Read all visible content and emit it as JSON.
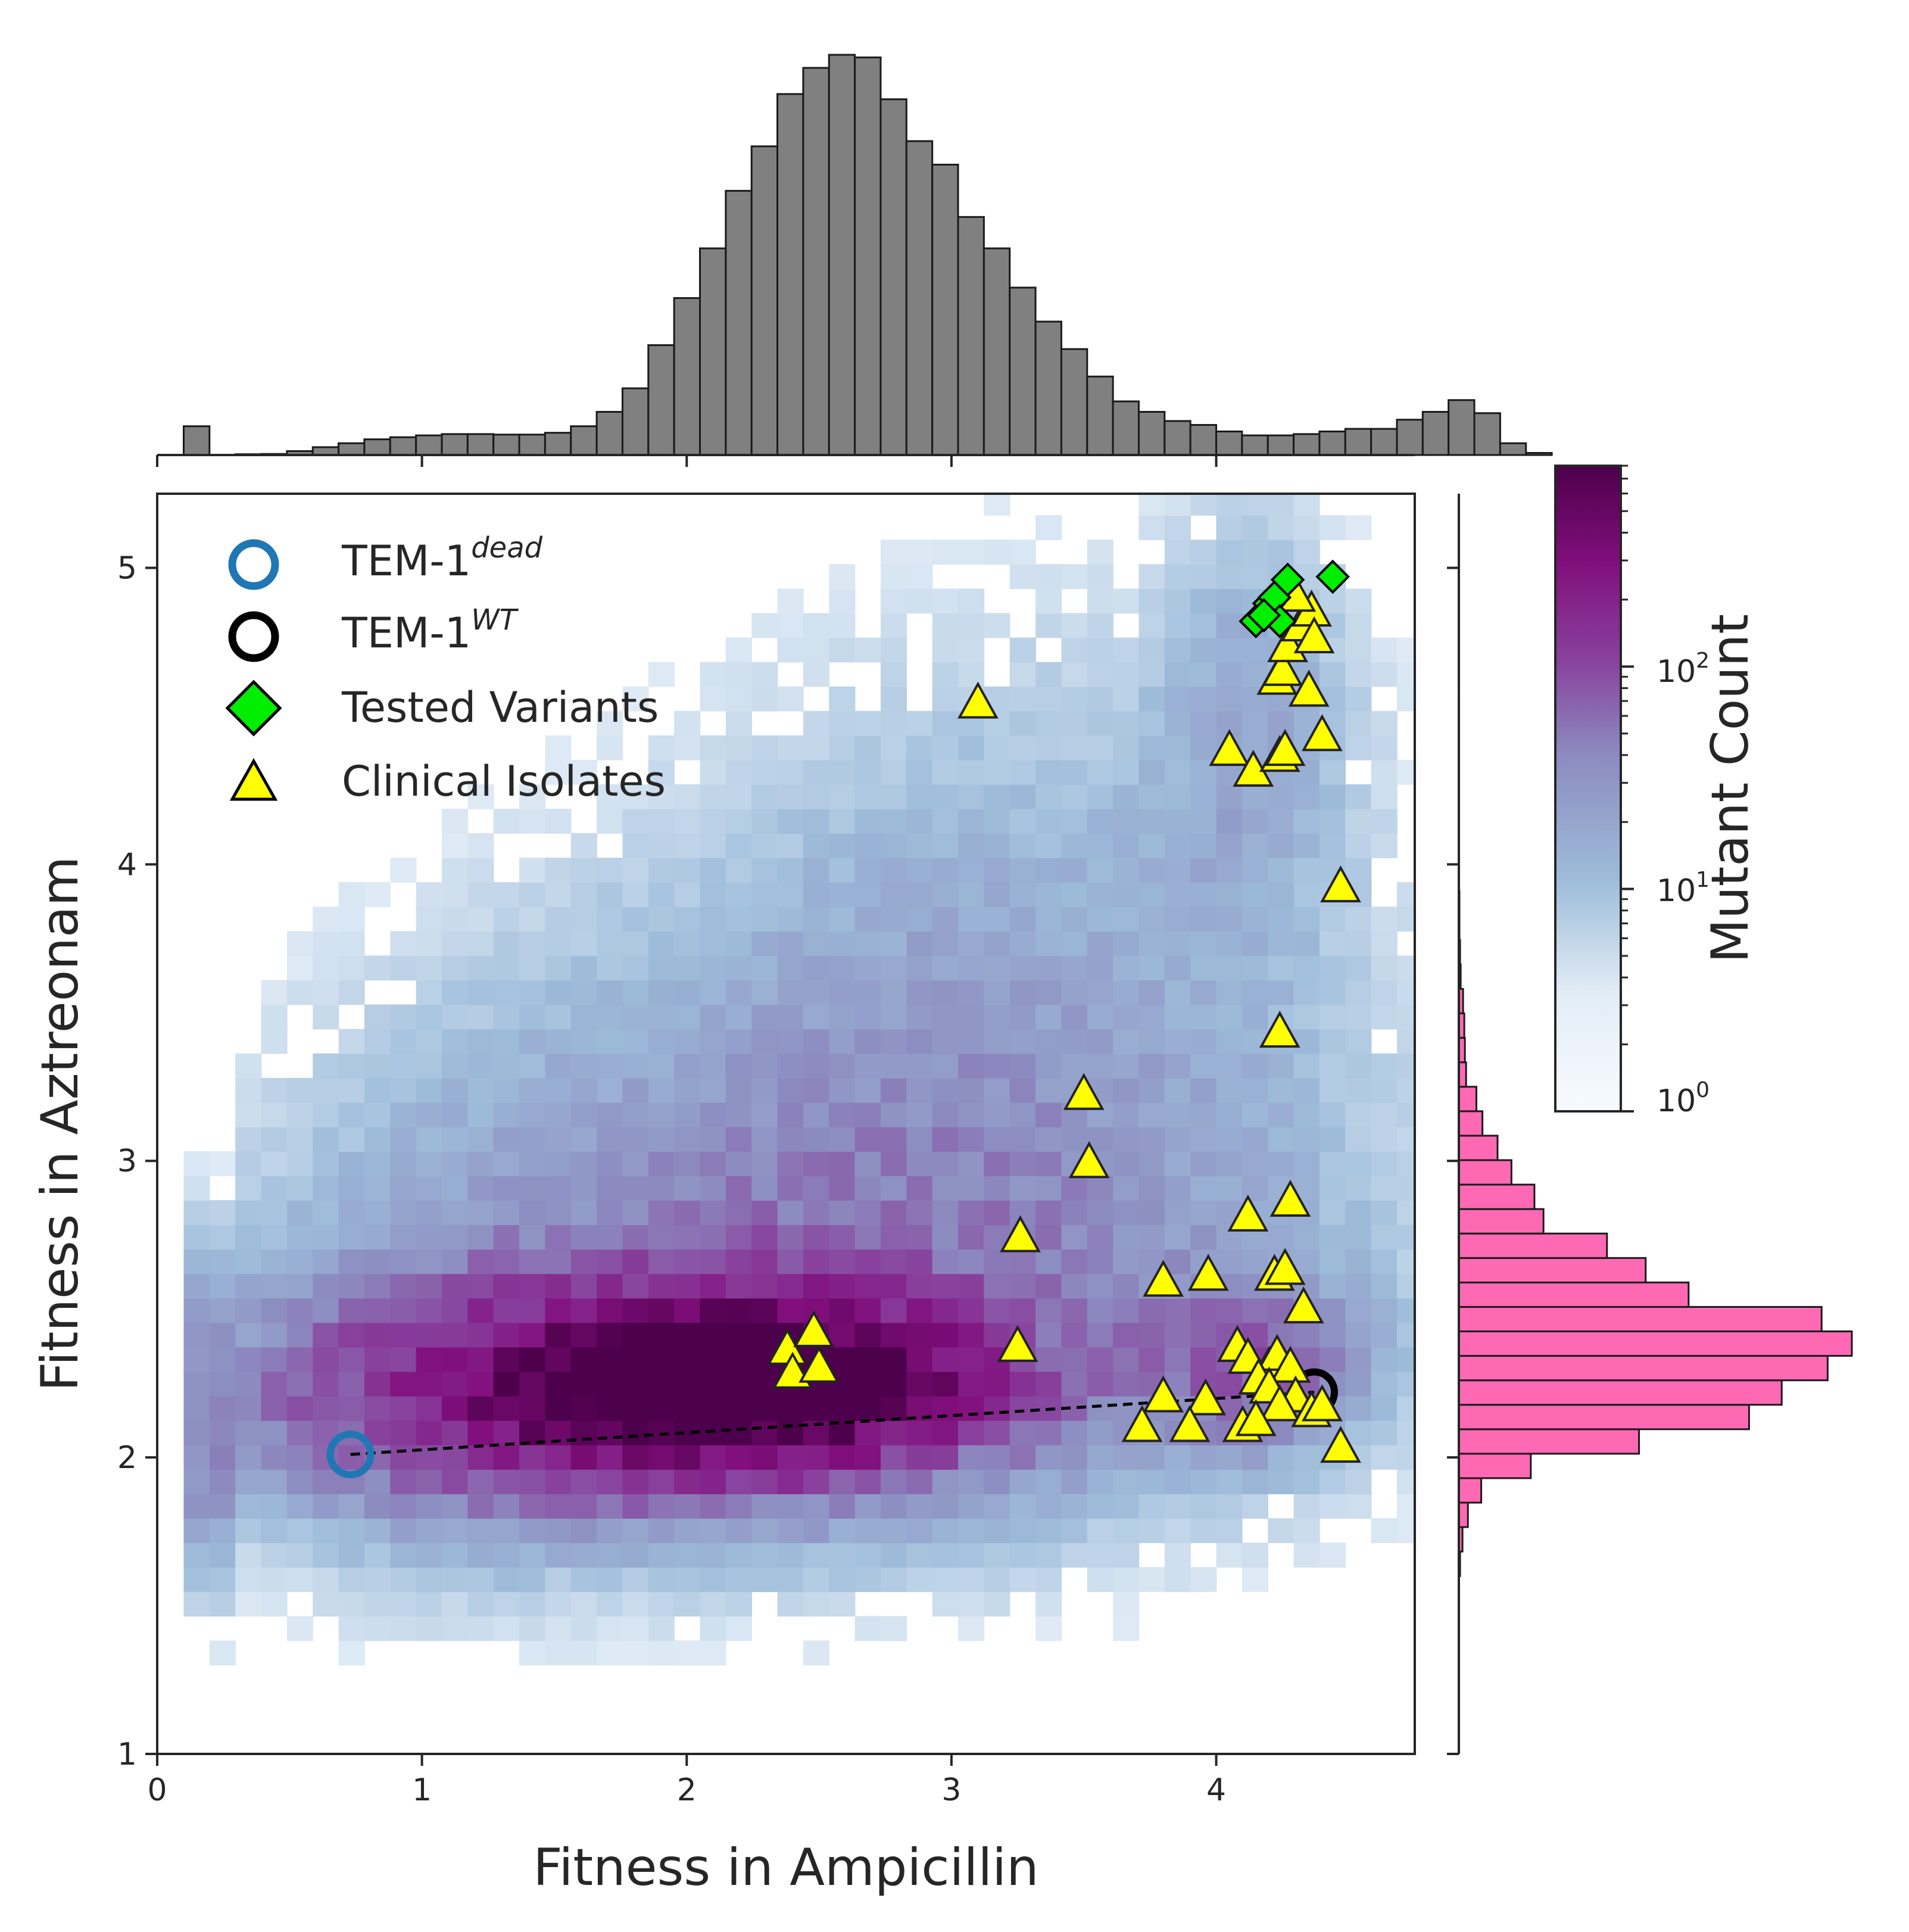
{
  "chart_data": [
    {
      "type": "heatmap",
      "panel": "joint",
      "xlabel": "Fitness in Ampicillin",
      "ylabel": "Fitness in Aztreonam",
      "xlim": [
        0,
        4.75
      ],
      "ylim": [
        1,
        5.25
      ],
      "xticks": [
        0,
        1,
        2,
        3,
        4
      ],
      "yticks": [
        1,
        2,
        3,
        4,
        5
      ],
      "grid": false,
      "legend_position": "top-left",
      "legend": [
        {
          "label": "TEM-1",
          "sup": "dead",
          "marker": "circle-open",
          "color": "#1f77b4"
        },
        {
          "label": "TEM-1",
          "sup": "WT",
          "marker": "circle-open",
          "color": "#000000"
        },
        {
          "label": "Tested Variants",
          "marker": "diamond",
          "color": "#00ee00"
        },
        {
          "label": "Clinical Isolates",
          "marker": "triangle",
          "color": "#ffff00"
        }
      ],
      "density_description": "2D histogram of mutants, peak near (2.2, 2.25)",
      "points": {
        "tem1_dead": {
          "x": 0.73,
          "y": 2.01
        },
        "tem1_wt": {
          "x": 4.37,
          "y": 2.22
        },
        "tested_variants": [
          {
            "x": 4.15,
            "y": 4.82
          },
          {
            "x": 4.2,
            "y": 4.88
          },
          {
            "x": 4.22,
            "y": 4.9
          },
          {
            "x": 4.27,
            "y": 4.96
          },
          {
            "x": 4.44,
            "y": 4.97
          },
          {
            "x": 4.24,
            "y": 4.82
          },
          {
            "x": 4.18,
            "y": 4.84
          }
        ],
        "clinical_isolates": [
          {
            "x": 3.1,
            "y": 4.54
          },
          {
            "x": 4.05,
            "y": 4.38
          },
          {
            "x": 4.14,
            "y": 4.31
          },
          {
            "x": 4.24,
            "y": 4.36
          },
          {
            "x": 4.26,
            "y": 4.38
          },
          {
            "x": 4.4,
            "y": 4.43
          },
          {
            "x": 4.35,
            "y": 4.58
          },
          {
            "x": 4.23,
            "y": 4.62
          },
          {
            "x": 4.25,
            "y": 4.65
          },
          {
            "x": 4.27,
            "y": 4.73
          },
          {
            "x": 4.32,
            "y": 4.8
          },
          {
            "x": 4.36,
            "y": 4.85
          },
          {
            "x": 4.3,
            "y": 4.9
          },
          {
            "x": 4.37,
            "y": 4.76
          },
          {
            "x": 4.47,
            "y": 3.92
          },
          {
            "x": 4.24,
            "y": 3.43
          },
          {
            "x": 3.5,
            "y": 3.22
          },
          {
            "x": 3.52,
            "y": 2.99
          },
          {
            "x": 4.28,
            "y": 2.86
          },
          {
            "x": 4.12,
            "y": 2.81
          },
          {
            "x": 3.26,
            "y": 2.74
          },
          {
            "x": 3.8,
            "y": 2.59
          },
          {
            "x": 3.97,
            "y": 2.61
          },
          {
            "x": 4.22,
            "y": 2.61
          },
          {
            "x": 4.26,
            "y": 2.63
          },
          {
            "x": 4.33,
            "y": 2.5
          },
          {
            "x": 2.38,
            "y": 2.36
          },
          {
            "x": 2.48,
            "y": 2.42
          },
          {
            "x": 2.4,
            "y": 2.28
          },
          {
            "x": 2.5,
            "y": 2.3
          },
          {
            "x": 3.25,
            "y": 2.37
          },
          {
            "x": 4.08,
            "y": 2.37
          },
          {
            "x": 4.12,
            "y": 2.33
          },
          {
            "x": 4.2,
            "y": 2.3
          },
          {
            "x": 4.23,
            "y": 2.34
          },
          {
            "x": 4.28,
            "y": 2.3
          },
          {
            "x": 4.16,
            "y": 2.26
          },
          {
            "x": 4.2,
            "y": 2.23
          },
          {
            "x": 4.3,
            "y": 2.2
          },
          {
            "x": 4.24,
            "y": 2.17
          },
          {
            "x": 4.36,
            "y": 2.15
          },
          {
            "x": 4.4,
            "y": 2.17
          },
          {
            "x": 3.8,
            "y": 2.2
          },
          {
            "x": 3.96,
            "y": 2.19
          },
          {
            "x": 3.72,
            "y": 2.1
          },
          {
            "x": 3.9,
            "y": 2.1
          },
          {
            "x": 4.1,
            "y": 2.1
          },
          {
            "x": 4.15,
            "y": 2.12
          },
          {
            "x": 4.47,
            "y": 2.03
          }
        ]
      }
    },
    {
      "type": "bar",
      "panel": "top-marginal",
      "xlabel": "",
      "ylabel": "",
      "bin_edges_start": 0.1,
      "bin_width": 0.0975,
      "values": [
        110,
        0,
        3,
        4,
        15,
        30,
        45,
        60,
        68,
        75,
        80,
        80,
        78,
        78,
        85,
        110,
        165,
        255,
        420,
        600,
        790,
        1010,
        1180,
        1380,
        1480,
        1530,
        1520,
        1360,
        1200,
        1110,
        910,
        790,
        640,
        510,
        405,
        300,
        205,
        165,
        130,
        115,
        90,
        75,
        75,
        80,
        90,
        100,
        100,
        135,
        165,
        210,
        160,
        45,
        8
      ]
    },
    {
      "type": "bar",
      "orientation": "horizontal",
      "panel": "right-marginal",
      "bin_start": 1.6,
      "bin_width": 0.0825,
      "values": [
        20,
        60,
        150,
        370,
        1190,
        2980,
        4800,
        5340,
        6100,
        6500,
        6000,
        3800,
        3090,
        2450,
        1400,
        1250,
        870,
        640,
        390,
        290,
        120,
        100,
        90,
        70,
        30,
        20,
        10,
        10,
        5,
        5,
        5,
        5,
        5,
        5,
        5,
        5
      ]
    },
    {
      "type": "heatmap",
      "panel": "colorbar",
      "label": "Mutant Count",
      "scale": "log",
      "ticks": [
        "10",
        "10",
        "10"
      ],
      "tick_exponents": [
        "0",
        "1",
        "2"
      ],
      "range": [
        1,
        800
      ],
      "colors": [
        "#f7fbff",
        "#9ebcd9",
        "#8c6bb1",
        "#88419d",
        "#810f7c",
        "#4d004b"
      ]
    }
  ]
}
